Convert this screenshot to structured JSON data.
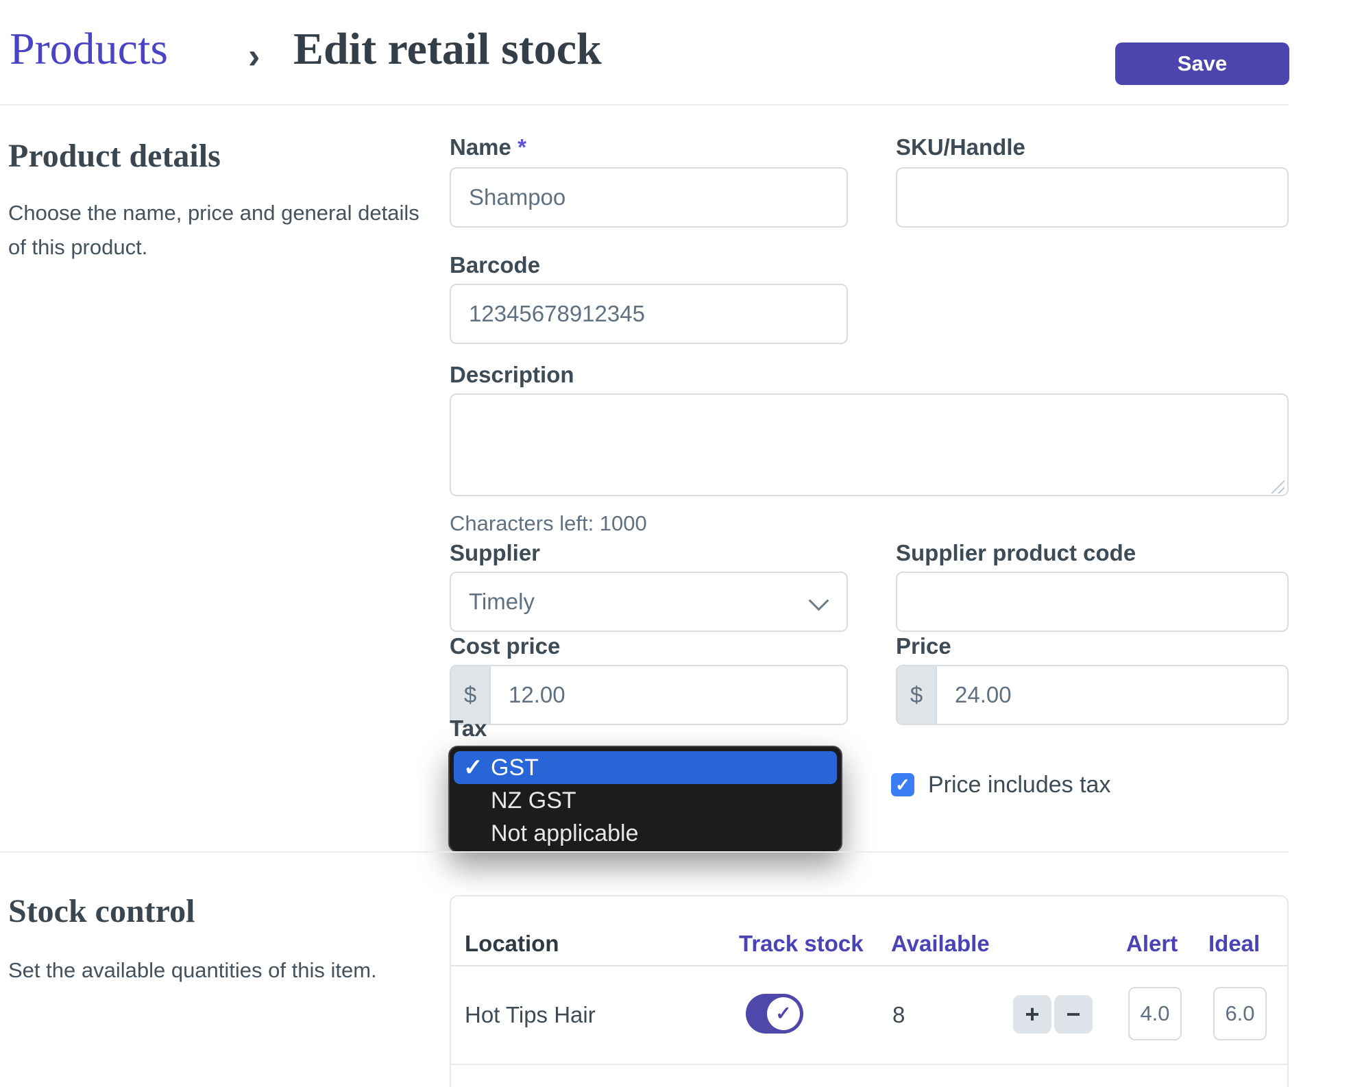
{
  "header": {
    "breadcrumb": "Products",
    "separator": "›",
    "title": "Edit retail stock",
    "save_label": "Save"
  },
  "product_details": {
    "heading": "Product details",
    "description": "Choose the name, price and general details of this product.",
    "name": {
      "label": "Name",
      "required": "*",
      "value": "Shampoo"
    },
    "sku": {
      "label": "SKU/Handle",
      "value": ""
    },
    "barcode": {
      "label": "Barcode",
      "value": "12345678912345"
    },
    "description_field": {
      "label": "Description",
      "value": "",
      "chars_left": "Characters left: 1000"
    },
    "supplier": {
      "label": "Supplier",
      "value": "Timely"
    },
    "supplier_product_code": {
      "label": "Supplier product code",
      "value": ""
    },
    "cost_price": {
      "label": "Cost price",
      "currency": "$",
      "value": "12.00"
    },
    "price": {
      "label": "Price",
      "currency": "$",
      "value": "24.00"
    },
    "tax": {
      "label": "Tax"
    },
    "price_includes_tax": {
      "label": "Price includes tax",
      "checked": true,
      "check_glyph": "✓"
    }
  },
  "tax_dropdown": {
    "check_glyph": "✓",
    "options": [
      {
        "label": "GST",
        "selected": true
      },
      {
        "label": "NZ GST",
        "selected": false
      },
      {
        "label": "Not applicable",
        "selected": false
      }
    ]
  },
  "stock_control": {
    "heading": "Stock control",
    "description": "Set the available quantities of this item.",
    "table": {
      "columns": [
        "Location",
        "Track stock",
        "Available",
        "Alert",
        "Ideal"
      ],
      "row": {
        "location": "Hot Tips Hair",
        "track_stock_on": true,
        "toggle_check_glyph": "✓",
        "available": "8",
        "stepper": {
          "increment": "+",
          "decrement": "−"
        },
        "alert": "4.0",
        "ideal": "6.0"
      }
    }
  },
  "colors": {
    "accent_purple": "#4b45ad",
    "link_purple": "#4a44c4",
    "table_header_purple": "#4a43b5",
    "selection_blue": "#2866d8",
    "checkbox_blue": "#3b7df2",
    "popup_bg": "#1c1c1e"
  }
}
